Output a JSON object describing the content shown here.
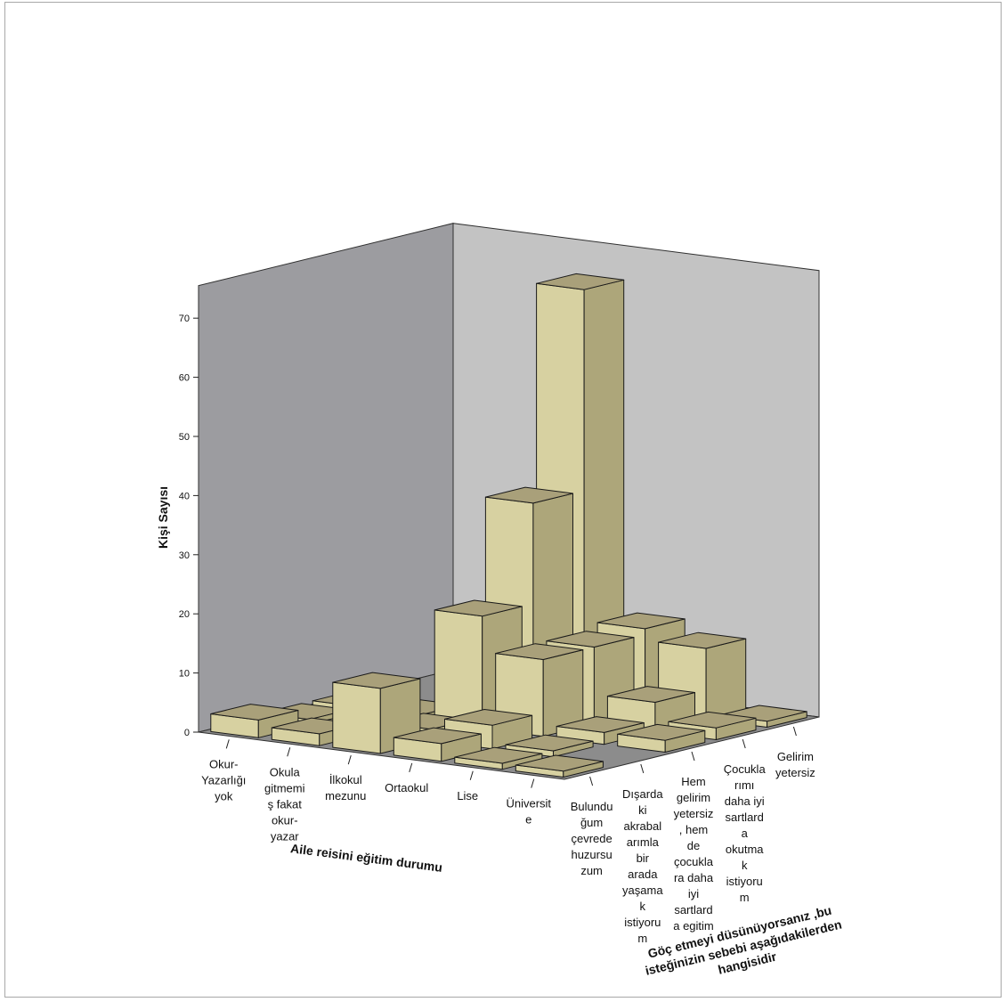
{
  "chart_data": {
    "type": "bar3d",
    "ylabel": "Kişi Sayısı",
    "xlabel": "Aile reisini eğitim durumu",
    "zlabel": [
      "Göç etmeyi düsünüyorsanız ,bu",
      "isteğinizin sebebi aşağıdakilerden",
      "hangisidir"
    ],
    "ylim": [
      0,
      70
    ],
    "yticks": [
      0,
      10,
      20,
      30,
      40,
      50,
      60,
      70
    ],
    "x_categories": [
      [
        "Okur-",
        "Yazarlığı",
        "yok"
      ],
      [
        "Okula",
        "gitmemi",
        "ş fakat",
        "okur-",
        "yazar"
      ],
      [
        "İlkokul",
        "mezunu"
      ],
      [
        "Ortaokul"
      ],
      [
        "Lise"
      ],
      [
        "Üniversit",
        "e"
      ]
    ],
    "z_categories": [
      [
        "Bulundu",
        "ğum",
        "çevrede",
        "huzursu",
        "zum"
      ],
      [
        "Dışarda",
        "ki",
        "akrabal",
        "arımla",
        "bir",
        "arada",
        "yaşama",
        "k",
        "istiyoru",
        "m"
      ],
      [
        "Hem",
        "gelirim",
        "yetersiz",
        ", hem",
        "de",
        "çocukla",
        "ra daha",
        "iyi",
        "sartlard",
        "a egitim"
      ],
      [
        "Çocukla",
        "rımı",
        "daha iyi",
        "sartlard",
        "a",
        "okutma",
        "k",
        "istiyoru",
        "m"
      ],
      [
        "Gelirim",
        "yetersiz"
      ]
    ],
    "bars": [
      {
        "x": 0,
        "z": 0,
        "value": 3
      },
      {
        "x": 0,
        "z": 1,
        "value": 1
      },
      {
        "x": 0,
        "z": 2,
        "value": 1
      },
      {
        "x": 1,
        "z": 0,
        "value": 2
      },
      {
        "x": 1,
        "z": 1,
        "value": 1
      },
      {
        "x": 1,
        "z": 2,
        "value": 1
      },
      {
        "x": 2,
        "z": 0,
        "value": 11
      },
      {
        "x": 2,
        "z": 1,
        "value": 2
      },
      {
        "x": 2,
        "z": 2,
        "value": 19
      },
      {
        "x": 2,
        "z": 3,
        "value": 36
      },
      {
        "x": 2,
        "z": 4,
        "value": 70
      },
      {
        "x": 3,
        "z": 0,
        "value": 3
      },
      {
        "x": 3,
        "z": 1,
        "value": 4
      },
      {
        "x": 3,
        "z": 2,
        "value": 13
      },
      {
        "x": 3,
        "z": 3,
        "value": 13
      },
      {
        "x": 3,
        "z": 4,
        "value": 14
      },
      {
        "x": 4,
        "z": 0,
        "value": 1
      },
      {
        "x": 4,
        "z": 1,
        "value": 1
      },
      {
        "x": 4,
        "z": 2,
        "value": 2
      },
      {
        "x": 4,
        "z": 3,
        "value": 5
      },
      {
        "x": 4,
        "z": 4,
        "value": 12
      },
      {
        "x": 5,
        "z": 0,
        "value": 1
      },
      {
        "x": 5,
        "z": 2,
        "value": 2
      },
      {
        "x": 5,
        "z": 3,
        "value": 2
      },
      {
        "x": 5,
        "z": 4,
        "value": 1
      }
    ],
    "colors": {
      "bar_front": "#d7d1a1",
      "bar_top": "#a9a07a",
      "bar_side": "#ada67a",
      "bar_edge": "#1a1a1a",
      "wall_left": "#9c9ca0",
      "wall_back": "#c3c3c3",
      "floor": "#8c8c8c"
    }
  }
}
